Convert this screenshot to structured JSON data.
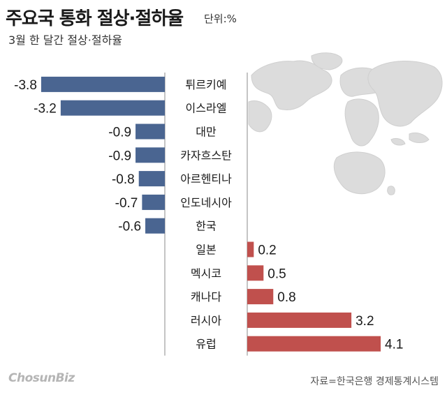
{
  "header": {
    "title": "주요국 통화 절상·절하율",
    "unit": "단위:%",
    "subtitle": "3월 한 달간 절상·절하율"
  },
  "footer": {
    "source": "자료=한국은행 경제통계시스템",
    "brand": "ChosunBiz"
  },
  "colors": {
    "negative": "#4a6591",
    "positive": "#c0504d",
    "map": "#dcdcdc"
  },
  "chart_data": {
    "type": "bar",
    "orientation": "horizontal",
    "title": "주요국 통화 절상·절하율",
    "subtitle": "3월 한 달간 절상·절하율",
    "unit": "단위:%",
    "categories": [
      "튀르키예",
      "이스라엘",
      "대만",
      "카자흐스탄",
      "아르헨티나",
      "인도네시아",
      "한국",
      "일본",
      "멕시코",
      "캐나다",
      "러시아",
      "유럽"
    ],
    "values": [
      -3.8,
      -3.2,
      -0.9,
      -0.9,
      -0.8,
      -0.7,
      -0.6,
      0.2,
      0.5,
      0.8,
      3.2,
      4.1
    ],
    "value_labels": [
      "-3.8",
      "-3.2",
      "-0.9",
      "-0.9",
      "-0.8",
      "-0.7",
      "-0.6",
      "0.2",
      "0.5",
      "0.8",
      "3.2",
      "4.1"
    ],
    "xlim": [
      -3.8,
      4.1
    ]
  }
}
